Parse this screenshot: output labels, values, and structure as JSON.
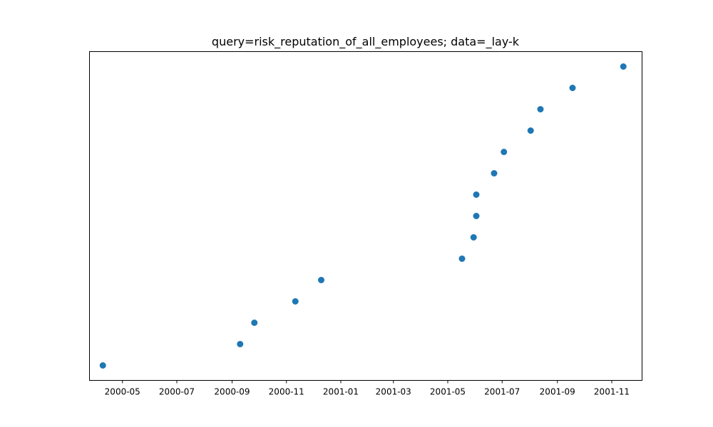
{
  "chart_data": {
    "type": "scatter",
    "title": "query=risk_reputation_of_all_employees; data=_lay-k",
    "xlabel": "",
    "ylabel": "",
    "x_axis_type": "date",
    "xlim": [
      "2000-03-25",
      "2001-12-05"
    ],
    "ylim": [
      -0.7,
      14.7
    ],
    "y_ticks_visible": false,
    "grid": false,
    "legend": "none",
    "marker_color": "#1f77b4",
    "x_ticks": [
      {
        "date": "2000-05-01",
        "label": "2000-05"
      },
      {
        "date": "2000-07-01",
        "label": "2000-07"
      },
      {
        "date": "2000-09-01",
        "label": "2000-09"
      },
      {
        "date": "2000-11-01",
        "label": "2000-11"
      },
      {
        "date": "2001-01-01",
        "label": "2001-01"
      },
      {
        "date": "2001-03-01",
        "label": "2001-03"
      },
      {
        "date": "2001-05-01",
        "label": "2001-05"
      },
      {
        "date": "2001-07-01",
        "label": "2001-07"
      },
      {
        "date": "2001-09-01",
        "label": "2001-09"
      },
      {
        "date": "2001-11-01",
        "label": "2001-11"
      }
    ],
    "points": [
      {
        "x": "2000-04-09",
        "y": 0
      },
      {
        "x": "2000-09-10",
        "y": 1
      },
      {
        "x": "2000-09-26",
        "y": 2
      },
      {
        "x": "2000-11-11",
        "y": 3
      },
      {
        "x": "2000-12-10",
        "y": 4
      },
      {
        "x": "2001-05-17",
        "y": 5
      },
      {
        "x": "2001-05-30",
        "y": 6
      },
      {
        "x": "2001-06-02",
        "y": 7
      },
      {
        "x": "2001-06-02",
        "y": 8
      },
      {
        "x": "2001-06-22",
        "y": 9
      },
      {
        "x": "2001-07-03",
        "y": 10
      },
      {
        "x": "2001-08-02",
        "y": 11
      },
      {
        "x": "2001-08-13",
        "y": 12
      },
      {
        "x": "2001-09-18",
        "y": 13
      },
      {
        "x": "2001-11-14",
        "y": 14
      }
    ]
  }
}
